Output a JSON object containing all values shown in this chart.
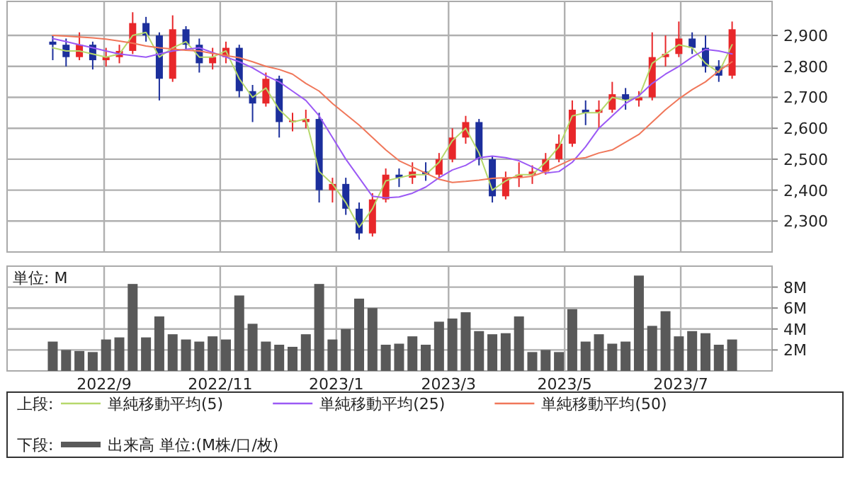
{
  "chart_data": [
    {
      "type": "candlestick",
      "legend_title": "上段:",
      "legend": "bottom",
      "grid": true,
      "tick_labels": "y",
      "xlim": [
        "2022-07-12",
        "2023-08-18"
      ],
      "xticks": [
        {
          "value": "2022-09-01",
          "label": null
        },
        {
          "value": "2022-11-01",
          "label": null
        },
        {
          "value": "2023-01-01",
          "label": null
        },
        {
          "value": "2023-03-01",
          "label": null
        },
        {
          "value": "2023-05-01",
          "label": null
        },
        {
          "value": "2023-07-01",
          "label": null
        }
      ],
      "ylim": [
        2200,
        3010
      ],
      "yticks": [
        {
          "value": 2300,
          "label": "2,300"
        },
        {
          "value": 2400,
          "label": "2,400"
        },
        {
          "value": 2500,
          "label": "2,500"
        },
        {
          "value": 2600,
          "label": "2,600"
        },
        {
          "value": 2700,
          "label": "2,700"
        },
        {
          "value": 2800,
          "label": "2,800"
        },
        {
          "value": 2900,
          "label": "2,900"
        }
      ],
      "x": [
        "2022-08-05",
        "2022-08-12",
        "2022-08-19",
        "2022-08-26",
        "2022-09-02",
        "2022-09-09",
        "2022-09-16",
        "2022-09-23",
        "2022-09-30",
        "2022-10-07",
        "2022-10-14",
        "2022-10-21",
        "2022-10-28",
        "2022-11-04",
        "2022-11-11",
        "2022-11-18",
        "2022-11-25",
        "2022-12-02",
        "2022-12-09",
        "2022-12-16",
        "2022-12-23",
        "2022-12-30",
        "2023-01-06",
        "2023-01-13",
        "2023-01-20",
        "2023-01-27",
        "2023-02-03",
        "2023-02-10",
        "2023-02-17",
        "2023-02-24",
        "2023-03-03",
        "2023-03-10",
        "2023-03-17",
        "2023-03-24",
        "2023-03-31",
        "2023-04-07",
        "2023-04-14",
        "2023-04-21",
        "2023-04-28",
        "2023-05-05",
        "2023-05-12",
        "2023-05-19",
        "2023-05-26",
        "2023-06-02",
        "2023-06-09",
        "2023-06-16",
        "2023-06-23",
        "2023-06-30",
        "2023-07-07",
        "2023-07-14",
        "2023-07-21",
        "2023-07-28"
      ],
      "ohlc": [
        [
          2880,
          2900,
          2820,
          2870
        ],
        [
          2870,
          2890,
          2800,
          2830
        ],
        [
          2830,
          2910,
          2820,
          2870
        ],
        [
          2870,
          2880,
          2790,
          2820
        ],
        [
          2820,
          2860,
          2800,
          2830
        ],
        [
          2830,
          2870,
          2810,
          2850
        ],
        [
          2850,
          2975,
          2840,
          2940
        ],
        [
          2940,
          2960,
          2880,
          2900
        ],
        [
          2900,
          2910,
          2690,
          2760
        ],
        [
          2760,
          2965,
          2750,
          2920
        ],
        [
          2920,
          2930,
          2850,
          2870
        ],
        [
          2870,
          2890,
          2780,
          2810
        ],
        [
          2810,
          2860,
          2790,
          2830
        ],
        [
          2830,
          2880,
          2810,
          2860
        ],
        [
          2860,
          2870,
          2700,
          2720
        ],
        [
          2720,
          2740,
          2620,
          2680
        ],
        [
          2680,
          2780,
          2670,
          2760
        ],
        [
          2760,
          2770,
          2570,
          2620
        ],
        [
          2620,
          2650,
          2590,
          2625
        ],
        [
          2620,
          2660,
          2600,
          2630
        ],
        [
          2630,
          2650,
          2360,
          2400
        ],
        [
          2400,
          2440,
          2360,
          2420
        ],
        [
          2420,
          2440,
          2320,
          2340
        ],
        [
          2340,
          2360,
          2240,
          2260
        ],
        [
          2260,
          2390,
          2250,
          2370
        ],
        [
          2370,
          2470,
          2360,
          2450
        ],
        [
          2450,
          2470,
          2410,
          2440
        ],
        [
          2440,
          2490,
          2420,
          2460
        ],
        [
          2460,
          2490,
          2430,
          2450
        ],
        [
          2450,
          2520,
          2440,
          2500
        ],
        [
          2500,
          2600,
          2490,
          2570
        ],
        [
          2570,
          2640,
          2550,
          2620
        ],
        [
          2620,
          2630,
          2480,
          2500
        ],
        [
          2500,
          2510,
          2360,
          2380
        ],
        [
          2380,
          2460,
          2370,
          2440
        ],
        [
          2440,
          2490,
          2410,
          2450
        ],
        [
          2450,
          2480,
          2420,
          2460
        ],
        [
          2460,
          2520,
          2450,
          2500
        ],
        [
          2500,
          2580,
          2490,
          2550
        ],
        [
          2550,
          2690,
          2540,
          2660
        ],
        [
          2660,
          2690,
          2610,
          2650
        ],
        [
          2650,
          2690,
          2600,
          2660
        ],
        [
          2660,
          2750,
          2650,
          2710
        ],
        [
          2710,
          2730,
          2660,
          2690
        ],
        [
          2690,
          2720,
          2670,
          2700
        ],
        [
          2700,
          2910,
          2690,
          2830
        ],
        [
          2830,
          2900,
          2800,
          2840
        ],
        [
          2840,
          2945,
          2830,
          2890
        ],
        [
          2890,
          2910,
          2840,
          2860
        ],
        [
          2860,
          2900,
          2780,
          2800
        ],
        [
          2800,
          2820,
          2750,
          2770
        ],
        [
          2770,
          2945,
          2760,
          2920
        ]
      ],
      "colors": [
        "#1c2f9c",
        "#1c2f9c",
        "#e8272a",
        "#1c2f9c",
        "#e8272a",
        "#e8272a",
        "#e8272a",
        "#1c2f9c",
        "#1c2f9c",
        "#e8272a",
        "#1c2f9c",
        "#1c2f9c",
        "#e8272a",
        "#e8272a",
        "#1c2f9c",
        "#1c2f9c",
        "#e8272a",
        "#1c2f9c",
        "#e8272a",
        "#e8272a",
        "#1c2f9c",
        "#e8272a",
        "#1c2f9c",
        "#1c2f9c",
        "#e8272a",
        "#e8272a",
        "#1c2f9c",
        "#e8272a",
        "#1c2f9c",
        "#e8272a",
        "#e8272a",
        "#e8272a",
        "#1c2f9c",
        "#1c2f9c",
        "#e8272a",
        "#e8272a",
        "#e8272a",
        "#e8272a",
        "#e8272a",
        "#e8272a",
        "#1c2f9c",
        "#e8272a",
        "#e8272a",
        "#1c2f9c",
        "#e8272a",
        "#e8272a",
        "#e8272a",
        "#e8272a",
        "#1c2f9c",
        "#1c2f9c",
        "#1c2f9c",
        "#e8272a"
      ],
      "series": [
        {
          "type": "line",
          "name": "単純移動平均(5)",
          "color": "#b6d86b",
          "values": [
            2860,
            2850,
            2850,
            2840,
            2830,
            2840,
            2900,
            2910,
            2830,
            2860,
            2880,
            2830,
            2830,
            2850,
            2760,
            2700,
            2730,
            2660,
            2620,
            2630,
            2460,
            2420,
            2360,
            2280,
            2340,
            2430,
            2440,
            2450,
            2450,
            2490,
            2560,
            2600,
            2520,
            2400,
            2430,
            2450,
            2450,
            2490,
            2540,
            2640,
            2650,
            2650,
            2700,
            2690,
            2700,
            2810,
            2840,
            2870,
            2860,
            2810,
            2780,
            2870
          ]
        },
        {
          "type": "line",
          "name": "単純移動平均(25)",
          "color": "#9b59f5",
          "values": [
            2890,
            2880,
            2870,
            2860,
            2850,
            2840,
            2835,
            2830,
            2840,
            2850,
            2855,
            2860,
            2845,
            2830,
            2815,
            2795,
            2770,
            2750,
            2720,
            2690,
            2640,
            2570,
            2500,
            2440,
            2380,
            2375,
            2378,
            2390,
            2410,
            2440,
            2465,
            2480,
            2505,
            2510,
            2505,
            2495,
            2475,
            2455,
            2460,
            2490,
            2540,
            2600,
            2640,
            2680,
            2705,
            2745,
            2775,
            2800,
            2830,
            2855,
            2850,
            2840
          ]
        },
        {
          "type": "line",
          "name": "単純移動平均(50)",
          "color": "#f0775a",
          "values": [
            2900,
            2898,
            2895,
            2892,
            2888,
            2882,
            2875,
            2866,
            2860,
            2856,
            2852,
            2850,
            2842,
            2835,
            2828,
            2815,
            2800,
            2790,
            2775,
            2745,
            2720,
            2680,
            2645,
            2610,
            2570,
            2530,
            2495,
            2475,
            2455,
            2435,
            2425,
            2428,
            2432,
            2438,
            2440,
            2440,
            2445,
            2460,
            2480,
            2500,
            2505,
            2520,
            2530,
            2555,
            2580,
            2620,
            2660,
            2695,
            2725,
            2750,
            2785,
            2815
          ]
        }
      ]
    },
    {
      "type": "bar",
      "legend_title": "下段:",
      "legend": "bottom",
      "grid": true,
      "annotations": [
        "単位: M"
      ],
      "xlim": [
        "2022-07-12",
        "2023-08-18"
      ],
      "xticks": [
        {
          "value": "2022-09-01",
          "label": "2022/9"
        },
        {
          "value": "2022-11-01",
          "label": "2022/11"
        },
        {
          "value": "2023-01-01",
          "label": "2023/1"
        },
        {
          "value": "2023-03-01",
          "label": "2023/3"
        },
        {
          "value": "2023-05-01",
          "label": "2023/5"
        },
        {
          "value": "2023-07-01",
          "label": "2023/7"
        }
      ],
      "ylim": [
        0,
        10
      ],
      "yticks": [
        {
          "value": 2,
          "label": "2M"
        },
        {
          "value": 4,
          "label": "4M"
        },
        {
          "value": 6,
          "label": "6M"
        },
        {
          "value": 8,
          "label": "8M"
        }
      ],
      "x": [
        "2022-08-05",
        "2022-08-12",
        "2022-08-19",
        "2022-08-26",
        "2022-09-02",
        "2022-09-09",
        "2022-09-16",
        "2022-09-23",
        "2022-09-30",
        "2022-10-07",
        "2022-10-14",
        "2022-10-21",
        "2022-10-28",
        "2022-11-04",
        "2022-11-11",
        "2022-11-18",
        "2022-11-25",
        "2022-12-02",
        "2022-12-09",
        "2022-12-16",
        "2022-12-23",
        "2022-12-30",
        "2023-01-06",
        "2023-01-13",
        "2023-01-20",
        "2023-01-27",
        "2023-02-03",
        "2023-02-10",
        "2023-02-17",
        "2023-02-24",
        "2023-03-03",
        "2023-03-10",
        "2023-03-17",
        "2023-03-24",
        "2023-03-31",
        "2023-04-07",
        "2023-04-14",
        "2023-04-21",
        "2023-04-28",
        "2023-05-05",
        "2023-05-12",
        "2023-05-19",
        "2023-05-26",
        "2023-06-02",
        "2023-06-09",
        "2023-06-16",
        "2023-06-23",
        "2023-06-30",
        "2023-07-07",
        "2023-07-14",
        "2023-07-21",
        "2023-07-28"
      ],
      "series": [
        {
          "name": "出来高 単位:(M株/口/枚)",
          "color": "#595959",
          "values": [
            2.8,
            2.0,
            1.9,
            1.8,
            3.0,
            3.2,
            8.3,
            3.2,
            5.2,
            3.5,
            3.0,
            2.8,
            3.3,
            3.0,
            7.2,
            4.5,
            2.8,
            2.5,
            2.3,
            3.5,
            8.3,
            3.0,
            4.0,
            6.9,
            6.0,
            2.5,
            2.6,
            3.3,
            2.5,
            4.7,
            5.0,
            5.6,
            3.8,
            3.5,
            3.6,
            5.2,
            1.8,
            2.0,
            1.8,
            5.9,
            2.8,
            3.5,
            2.6,
            2.8,
            9.1,
            4.3,
            5.7,
            3.3,
            3.8,
            3.6,
            2.5,
            3.0
          ]
        }
      ]
    }
  ]
}
